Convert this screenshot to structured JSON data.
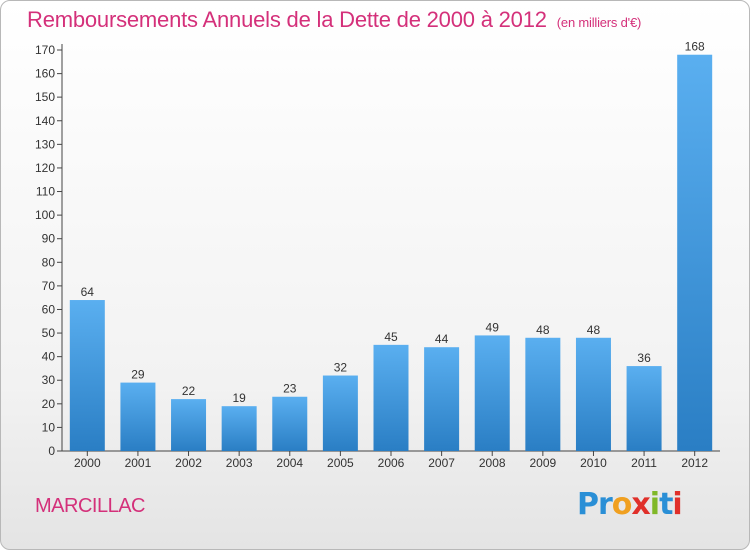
{
  "page": {
    "title": "Remboursements Annuels de la Dette de 2000 à 2012",
    "unit_note": "(en milliers d'€)",
    "commune": "MARCILLAC",
    "brand": "Proxiti",
    "brand_colors": [
      "#2a8fd6",
      "#2a8fd6",
      "#f0a020",
      "#e0302a",
      "#80b828",
      "#2a8fd6",
      "#e0302a"
    ]
  },
  "colors": {
    "title": "#d4307a",
    "bar_top": "#5aaff0",
    "bar_bottom": "#2a7ec4"
  },
  "chart_data": {
    "type": "bar",
    "categories": [
      "2000",
      "2001",
      "2002",
      "2003",
      "2004",
      "2005",
      "2006",
      "2007",
      "2008",
      "2009",
      "2010",
      "2011",
      "2012"
    ],
    "values": [
      64,
      29,
      22,
      19,
      23,
      32,
      45,
      44,
      49,
      48,
      48,
      36,
      168
    ],
    "data_labels": [
      "64",
      "29",
      "22",
      "19",
      "23",
      "32",
      "45",
      "44",
      "49",
      "48",
      "48",
      "36",
      "168"
    ],
    "title": "Remboursements Annuels de la Dette de 2000 à 2012",
    "xlabel": "",
    "ylabel": "",
    "ylim": [
      0,
      170
    ],
    "yticks": [
      0,
      10,
      20,
      30,
      40,
      50,
      60,
      70,
      80,
      90,
      100,
      110,
      120,
      130,
      140,
      150,
      160,
      170
    ],
    "grid": false,
    "legend": "none"
  }
}
